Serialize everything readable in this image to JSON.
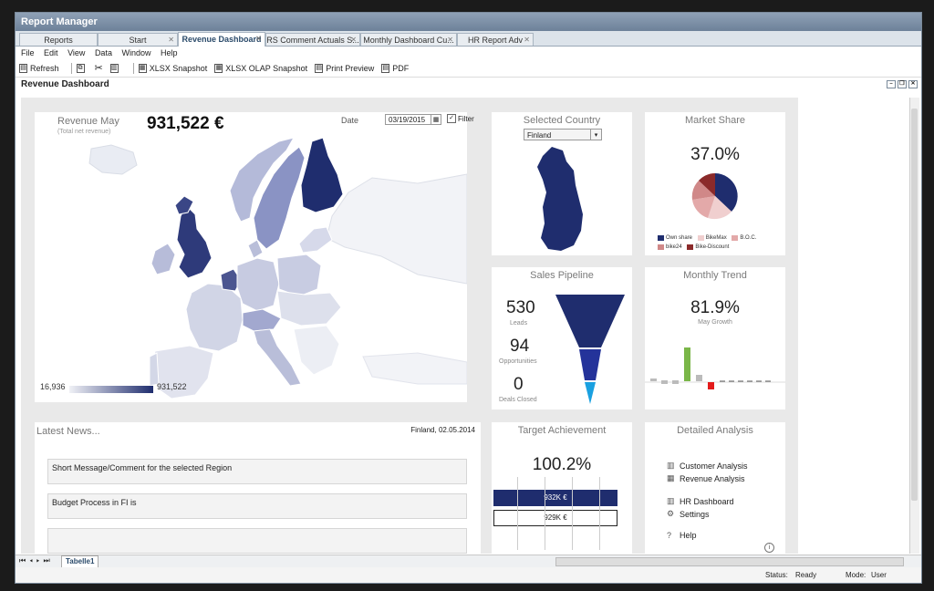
{
  "app": {
    "title": "Report Manager"
  },
  "tabs": [
    {
      "label": "Reports"
    },
    {
      "label": "Start"
    },
    {
      "label": "Revenue Dashboard"
    },
    {
      "label": "RS Comment Actuals S..."
    },
    {
      "label": "Monthly Dashboard Cu..."
    },
    {
      "label": "HR Report Adv"
    }
  ],
  "menu": [
    "File",
    "Edit",
    "View",
    "Data",
    "Window",
    "Help"
  ],
  "toolbar": {
    "refresh": "Refresh",
    "xlsx": "XLSX Snapshot",
    "olap": "XLSX OLAP Snapshot",
    "print": "Print Preview",
    "pdf": "PDF"
  },
  "page": {
    "title": "Revenue Dashboard"
  },
  "revenue": {
    "title": "Revenue May",
    "subtitle": "(Total net revenue)",
    "value": "931,522 €",
    "date_label": "Date",
    "date_value": "03/19/2015",
    "filter_label": "Filter",
    "legend_min": "16,936",
    "legend_max": "931,522"
  },
  "selected_country": {
    "title": "Selected Country",
    "value": "Finland"
  },
  "market_share": {
    "title": "Market Share",
    "value": "37.0%",
    "legend": [
      {
        "label": "Own share",
        "color": "#1f2d6e"
      },
      {
        "label": "BikeMax",
        "color": "#f0cfcf"
      },
      {
        "label": "B.O.C.",
        "color": "#e3a9a9"
      },
      {
        "label": "bike24",
        "color": "#d08888"
      },
      {
        "label": "Bike-Discount",
        "color": "#8b2a2a"
      }
    ]
  },
  "pipeline": {
    "title": "Sales Pipeline",
    "leads": "530",
    "leads_label": "Leads",
    "opps": "94",
    "opps_label": "Opportunities",
    "deals": "0",
    "deals_label": "Deals Closed"
  },
  "trend": {
    "title": "Monthly Trend",
    "value": "81.9%",
    "subtitle": "May Growth"
  },
  "news": {
    "title": "Latest News...",
    "date": "Finland, 02.05.2014",
    "items": [
      "Short Message/Comment for the selected Region",
      "Budget Process in FI is",
      ""
    ]
  },
  "target": {
    "title": "Target Achievement",
    "value": "100.2%",
    "actual": "932K €",
    "target": "929K €"
  },
  "analysis": {
    "title": "Detailed Analysis",
    "links": [
      "Customer Analysis",
      "Revenue Analysis",
      "HR Dashboard",
      "Settings",
      "Help"
    ]
  },
  "sheet": {
    "tab": "Tabelle1"
  },
  "status": {
    "status_label": "Status:",
    "status_value": "Ready",
    "mode_label": "Mode:",
    "mode_value": "User"
  }
}
